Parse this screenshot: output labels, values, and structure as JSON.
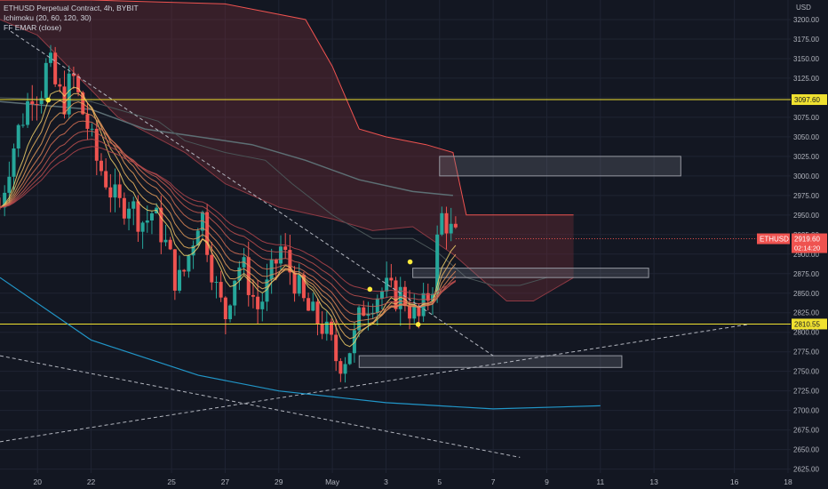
{
  "legend": {
    "symbol": "ETHUSD Perpetual Contract, 4h, BYBIT",
    "ichimoku": "Ichimoku (20, 60, 120, 30)",
    "ema": "FF EMAR (close)"
  },
  "currency": "USD",
  "colors": {
    "background": "#131722",
    "grid": "#1f2433",
    "up": "#26a69a",
    "down": "#ef5350",
    "cloud": "#7b2d36",
    "level": "#f0e130",
    "text": "#b2b5be"
  },
  "chart_data": {
    "type": "candlestick",
    "x_ticks": [
      {
        "label": "20",
        "day": 20
      },
      {
        "label": "22",
        "day": 22
      },
      {
        "label": "25",
        "day": 25
      },
      {
        "label": "27",
        "day": 27
      },
      {
        "label": "29",
        "day": 29
      },
      {
        "label": "May",
        "day": 31
      },
      {
        "label": "3",
        "day": 33
      },
      {
        "label": "5",
        "day": 35
      },
      {
        "label": "7",
        "day": 37
      },
      {
        "label": "9",
        "day": 39
      },
      {
        "label": "11",
        "day": 41
      },
      {
        "label": "13",
        "day": 43
      },
      {
        "label": "16",
        "day": 46
      },
      {
        "label": "18",
        "day": 48
      }
    ],
    "x_range_days": [
      18.6,
      48.1
    ],
    "y_range": [
      2620,
      3225
    ],
    "y_ticks": [
      3200,
      3175,
      3150,
      3125,
      3100,
      3075,
      3050,
      3025,
      3000,
      2975,
      2950,
      2925,
      2900,
      2875,
      2850,
      2825,
      2800,
      2775,
      2750,
      2725,
      2700,
      2675,
      2650,
      2625
    ],
    "y_tick_labels": [
      "3200.00",
      "3175.00",
      "3150.00",
      "3125.00",
      "3100.00",
      "3075.00",
      "3050.00",
      "3025.00",
      "3000.00",
      "2975.00",
      "2950.00",
      "2925.00",
      "2900.00",
      "2875.00",
      "2850.00",
      "2825.00",
      "2800.00",
      "2775.00",
      "2750.00",
      "2725.00",
      "2700.00",
      "2675.00",
      "2650.00",
      "2625.00"
    ],
    "price_levels": [
      {
        "value": 3097.6,
        "label": "3097.60"
      },
      {
        "value": 2810.55,
        "label": "2810.55"
      }
    ],
    "current_price": {
      "value": 2919.6,
      "label": "2919.60",
      "countdown": "02:14:20",
      "symbol": "ETHUSD"
    },
    "close_path": [
      [
        18.6,
        2960
      ],
      [
        18.9,
        3010
      ],
      [
        19.2,
        3050
      ],
      [
        19.5,
        3080
      ],
      [
        19.8,
        3110
      ],
      [
        20.1,
        3105
      ],
      [
        20.4,
        3150
      ],
      [
        20.7,
        3110
      ],
      [
        21.0,
        3095
      ],
      [
        21.3,
        3130
      ],
      [
        21.6,
        3090
      ],
      [
        21.9,
        3060
      ],
      [
        22.2,
        3020
      ],
      [
        22.5,
        3000
      ],
      [
        22.8,
        2975
      ],
      [
        23.1,
        2960
      ],
      [
        23.4,
        2970
      ],
      [
        23.7,
        2950
      ],
      [
        24.0,
        2940
      ],
      [
        24.3,
        2955
      ],
      [
        24.6,
        2930
      ],
      [
        24.9,
        2900
      ],
      [
        25.2,
        2860
      ],
      [
        25.5,
        2880
      ],
      [
        25.8,
        2920
      ],
      [
        26.1,
        2960
      ],
      [
        26.4,
        2900
      ],
      [
        26.7,
        2850
      ],
      [
        27.0,
        2820
      ],
      [
        27.3,
        2870
      ],
      [
        27.6,
        2890
      ],
      [
        27.9,
        2860
      ],
      [
        28.2,
        2830
      ],
      [
        28.5,
        2850
      ],
      [
        28.8,
        2880
      ],
      [
        29.1,
        2910
      ],
      [
        29.4,
        2880
      ],
      [
        29.7,
        2860
      ],
      [
        30.0,
        2830
      ],
      [
        30.3,
        2820
      ],
      [
        30.6,
        2810
      ],
      [
        30.9,
        2790
      ],
      [
        31.2,
        2760
      ],
      [
        31.5,
        2770
      ],
      [
        31.8,
        2790
      ],
      [
        32.1,
        2830
      ],
      [
        32.4,
        2840
      ],
      [
        32.7,
        2850
      ],
      [
        33.0,
        2855
      ],
      [
        33.3,
        2845
      ],
      [
        33.6,
        2850
      ],
      [
        33.9,
        2830
      ],
      [
        34.2,
        2815
      ],
      [
        34.5,
        2840
      ],
      [
        34.8,
        2870
      ],
      [
        35.0,
        2950
      ],
      [
        35.2,
        2945
      ],
      [
        35.4,
        2930
      ],
      [
        35.6,
        2919.6
      ]
    ],
    "candle_range_days": [
      18.6,
      35.6
    ],
    "ichimoku_cloud": {
      "upper": [
        [
          18.6,
          3225
        ],
        [
          22.0,
          3225
        ],
        [
          27.0,
          3220
        ],
        [
          30.0,
          3200
        ],
        [
          31.0,
          3140
        ],
        [
          32.0,
          3060
        ],
        [
          33.0,
          3050
        ],
        [
          34.5,
          3040
        ],
        [
          35.5,
          3030
        ],
        [
          36.0,
          2950
        ],
        [
          40.0,
          2950
        ]
      ],
      "lower": [
        [
          18.6,
          3200
        ],
        [
          20.0,
          3180
        ],
        [
          23.0,
          3075
        ],
        [
          25.5,
          3030
        ],
        [
          27.0,
          2990
        ],
        [
          29.0,
          2960
        ],
        [
          31.0,
          2945
        ],
        [
          32.5,
          2930
        ],
        [
          34.0,
          2935
        ],
        [
          35.5,
          2900
        ],
        [
          36.5,
          2870
        ],
        [
          37.5,
          2840
        ],
        [
          38.5,
          2840
        ],
        [
          39.5,
          2860
        ],
        [
          40.0,
          2870
        ]
      ]
    },
    "slow_line": [
      [
        18.6,
        3095
      ],
      [
        22.0,
        3085
      ],
      [
        24.0,
        3060
      ],
      [
        26.0,
        3050
      ],
      [
        28.0,
        3040
      ],
      [
        30.0,
        3020
      ],
      [
        32.0,
        2995
      ],
      [
        34.0,
        2980
      ],
      [
        35.5,
        2975
      ]
    ],
    "kijun_line": [
      [
        18.6,
        3100
      ],
      [
        22.0,
        3095
      ],
      [
        24.5,
        3070
      ],
      [
        25.5,
        3045
      ],
      [
        27.0,
        3030
      ],
      [
        28.5,
        3020
      ],
      [
        29.5,
        2990
      ],
      [
        31.0,
        2950
      ],
      [
        32.5,
        2920
      ],
      [
        34.0,
        2920
      ],
      [
        35.0,
        2900
      ],
      [
        36.0,
        2870
      ],
      [
        37.0,
        2860
      ],
      [
        38.0,
        2860
      ],
      [
        39.0,
        2870
      ]
    ],
    "zones": [
      {
        "x0": 35.0,
        "x1": 44.0,
        "y0": 3000,
        "y1": 3025
      },
      {
        "x0": 34.0,
        "x1": 42.8,
        "y0": 2870,
        "y1": 2882
      },
      {
        "x0": 32.0,
        "x1": 41.8,
        "y0": 2755,
        "y1": 2770
      }
    ],
    "trendlines": [
      {
        "x0": 19.0,
        "y0": 3185,
        "x1": 37.0,
        "y1": 2770
      },
      {
        "x0": 18.6,
        "y0": 2770,
        "x1": 38.0,
        "y1": 2640
      },
      {
        "x0": 18.6,
        "y0": 2660,
        "x1": 46.5,
        "y1": 2810
      }
    ],
    "arc": [
      [
        18.6,
        2870
      ],
      [
        22.0,
        2790
      ],
      [
        26.0,
        2745
      ],
      [
        29.0,
        2725
      ],
      [
        33.0,
        2710
      ],
      [
        37.0,
        2702
      ],
      [
        41.0,
        2706
      ]
    ],
    "markers": [
      {
        "x": 20.4,
        "y": 3097
      },
      {
        "x": 33.9,
        "y": 2890
      },
      {
        "x": 32.4,
        "y": 2855
      },
      {
        "x": 34.2,
        "y": 2810
      }
    ]
  }
}
